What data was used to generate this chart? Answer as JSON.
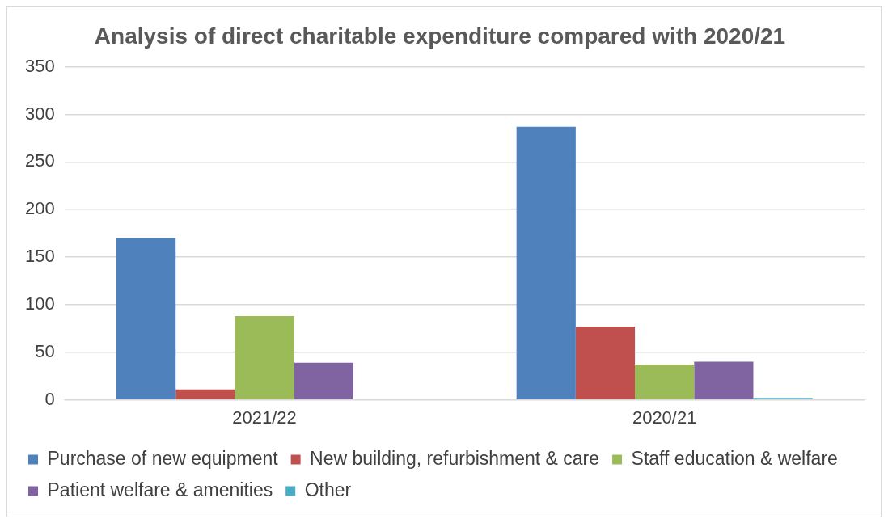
{
  "chart_data": {
    "type": "bar",
    "title": "Analysis of direct charitable expenditure compared with 2020/21",
    "categories": [
      "2021/22",
      "2020/21"
    ],
    "series": [
      {
        "name": "Purchase of new equipment",
        "color": "#4f81bd",
        "values": [
          170,
          287
        ]
      },
      {
        "name": "New building, refurbishment & care",
        "color": "#c0504d",
        "values": [
          11,
          77
        ]
      },
      {
        "name": "Staff education & welfare",
        "color": "#9bbb59",
        "values": [
          88,
          37
        ]
      },
      {
        "name": "Patient welfare & amenities",
        "color": "#8064a2",
        "values": [
          39,
          40
        ]
      },
      {
        "name": "Other",
        "color": "#4bacc6",
        "values": [
          0,
          2
        ]
      }
    ],
    "ylim": [
      0,
      350
    ],
    "yticks": [
      0,
      50,
      100,
      150,
      200,
      250,
      300,
      350
    ],
    "grid": "y",
    "legend": "bottom"
  }
}
